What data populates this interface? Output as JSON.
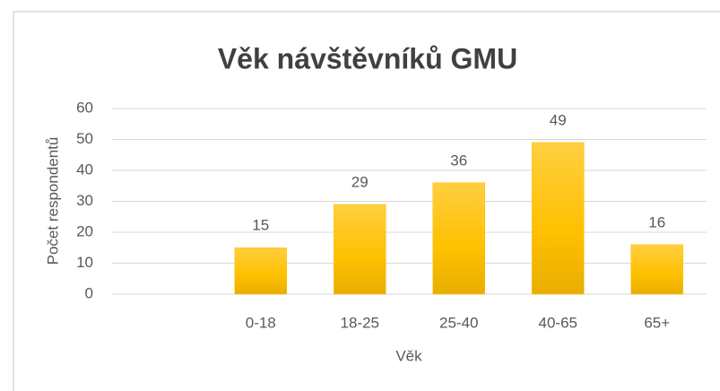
{
  "chart_data": {
    "type": "bar",
    "title": "Věk návštěvníků GMU",
    "x_label": "Věk",
    "y_label": "Počet respondentů",
    "categories": [
      null,
      "0-18",
      "18-25",
      "25-40",
      "40-65",
      "65+"
    ],
    "values": [
      null,
      15,
      29,
      36,
      49,
      16
    ],
    "color": "#ffc000",
    "ylim": [
      0,
      60
    ],
    "yticks": [
      0,
      10,
      20,
      30,
      40,
      50,
      60
    ],
    "grid": true,
    "value_labels_shown": true
  }
}
